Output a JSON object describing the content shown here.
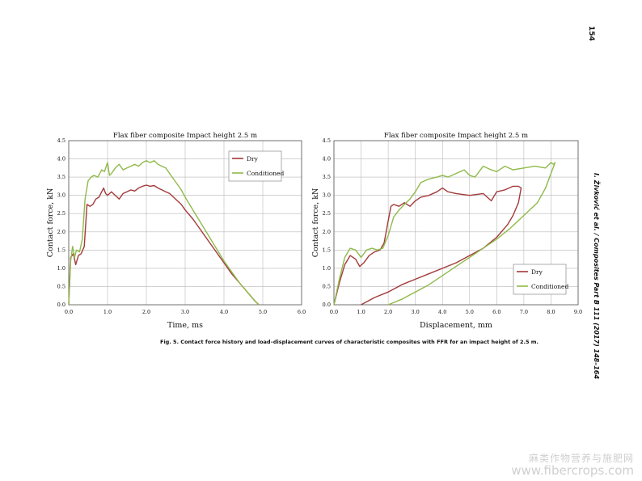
{
  "page": {
    "page_number": "154",
    "running_head": "I. Živković et al. / Composites Part B 111 (2017) 148–164",
    "caption": "Fig. 5. Contact force history and load–displacement curves of characteristic composites with FFR for an impact height of 2.5 m.",
    "watermark_line1": "麻类作物营养与施肥网",
    "watermark_line2": "www.fibercrops.com"
  },
  "colors": {
    "dry": "#a33a3a",
    "conditioned": "#8fba4a",
    "grid": "#b8b8b8",
    "frame": "#555555"
  },
  "chart_data": [
    {
      "type": "line",
      "title": "Flax fiber composite Impact height 2.5 m",
      "xlabel": "Time, ms",
      "ylabel": "Contact force, kN",
      "xlim": [
        0,
        6
      ],
      "ylim": [
        0,
        4.5
      ],
      "xticks": [
        "0.0",
        "1.0",
        "2.0",
        "3.0",
        "4.0",
        "5.0",
        "6.0"
      ],
      "yticks": [
        "0.0",
        "0.5",
        "1.0",
        "1.5",
        "2.0",
        "2.5",
        "3.0",
        "3.5",
        "4.0",
        "4.5"
      ],
      "grid": true,
      "legend_position": "top-right",
      "series": [
        {
          "name": "Dry",
          "color": "#a33a3a",
          "x": [
            0,
            0.05,
            0.12,
            0.18,
            0.25,
            0.32,
            0.4,
            0.47,
            0.55,
            0.62,
            0.7,
            0.78,
            0.85,
            0.9,
            0.95,
            1.0,
            1.1,
            1.2,
            1.3,
            1.4,
            1.5,
            1.6,
            1.7,
            1.8,
            1.9,
            2.0,
            2.1,
            2.2,
            2.3,
            2.4,
            2.5,
            2.6,
            2.7,
            2.8,
            2.9,
            3.0,
            3.2,
            3.4,
            3.6,
            3.8,
            4.0,
            4.2,
            4.4,
            4.6,
            4.8,
            4.9
          ],
          "y": [
            0,
            1.3,
            1.4,
            1.1,
            1.35,
            1.4,
            1.6,
            2.75,
            2.7,
            2.75,
            2.9,
            2.95,
            3.1,
            3.2,
            3.05,
            3.0,
            3.1,
            3.0,
            2.9,
            3.05,
            3.1,
            3.15,
            3.12,
            3.2,
            3.25,
            3.28,
            3.25,
            3.27,
            3.2,
            3.15,
            3.1,
            3.05,
            2.95,
            2.85,
            2.75,
            2.6,
            2.35,
            2.05,
            1.75,
            1.45,
            1.15,
            0.85,
            0.6,
            0.35,
            0.1,
            0
          ]
        },
        {
          "name": "Conditioned",
          "color": "#8fba4a",
          "x": [
            0,
            0.05,
            0.1,
            0.15,
            0.2,
            0.28,
            0.35,
            0.42,
            0.5,
            0.58,
            0.65,
            0.75,
            0.85,
            0.92,
            1.0,
            1.05,
            1.1,
            1.2,
            1.3,
            1.4,
            1.5,
            1.6,
            1.7,
            1.8,
            1.9,
            2.0,
            2.1,
            2.2,
            2.3,
            2.4,
            2.5,
            2.6,
            2.7,
            2.8,
            2.9,
            3.0,
            3.2,
            3.4,
            3.6,
            3.8,
            4.0,
            4.2,
            4.4,
            4.6,
            4.8,
            4.9
          ],
          "y": [
            0,
            1.2,
            1.6,
            1.3,
            1.5,
            1.45,
            1.8,
            2.9,
            3.4,
            3.5,
            3.55,
            3.5,
            3.7,
            3.65,
            3.9,
            3.55,
            3.6,
            3.75,
            3.85,
            3.7,
            3.75,
            3.8,
            3.85,
            3.8,
            3.9,
            3.95,
            3.9,
            3.95,
            3.85,
            3.8,
            3.75,
            3.6,
            3.45,
            3.3,
            3.15,
            2.95,
            2.6,
            2.25,
            1.9,
            1.55,
            1.2,
            0.9,
            0.6,
            0.35,
            0.1,
            0
          ]
        }
      ]
    },
    {
      "type": "line",
      "title": "Flax fiber composite Impact height 2.5 m",
      "xlabel": "Displacement, mm",
      "ylabel": "Contact force, kN",
      "xlim": [
        0,
        9
      ],
      "ylim": [
        0,
        4.5
      ],
      "xticks": [
        "0.0",
        "1.0",
        "2.0",
        "3.0",
        "4.0",
        "5.0",
        "6.0",
        "7.0",
        "8.0",
        "9.0"
      ],
      "yticks": [
        "0.0",
        "0.5",
        "1.0",
        "1.5",
        "2.0",
        "2.5",
        "3.0",
        "3.5",
        "4.0",
        "4.5"
      ],
      "grid": true,
      "legend_position": "bottom-right",
      "series": [
        {
          "name": "Dry",
          "color": "#a33a3a",
          "x": [
            0,
            0.2,
            0.4,
            0.6,
            0.8,
            0.95,
            1.1,
            1.3,
            1.5,
            1.7,
            1.85,
            2.0,
            2.1,
            2.2,
            2.4,
            2.6,
            2.8,
            3.0,
            3.2,
            3.5,
            3.8,
            4.0,
            4.2,
            4.5,
            5.0,
            5.5,
            5.8,
            6.0,
            6.3,
            6.6,
            6.8,
            6.9,
            6.8,
            6.6,
            6.4,
            6.0,
            5.5,
            5.0,
            4.5,
            4.0,
            3.5,
            3.0,
            2.5,
            2.0,
            1.5,
            1.0
          ],
          "y": [
            0,
            0.6,
            1.1,
            1.35,
            1.25,
            1.05,
            1.15,
            1.35,
            1.45,
            1.5,
            1.7,
            2.3,
            2.7,
            2.75,
            2.7,
            2.8,
            2.7,
            2.85,
            2.95,
            3.0,
            3.1,
            3.2,
            3.1,
            3.05,
            3.0,
            3.05,
            2.85,
            3.1,
            3.15,
            3.25,
            3.25,
            3.2,
            2.8,
            2.45,
            2.2,
            1.85,
            1.55,
            1.35,
            1.15,
            1.0,
            0.85,
            0.7,
            0.55,
            0.35,
            0.2,
            0
          ]
        },
        {
          "name": "Conditioned",
          "color": "#8fba4a",
          "x": [
            0,
            0.2,
            0.4,
            0.6,
            0.8,
            1.0,
            1.2,
            1.4,
            1.6,
            1.8,
            2.0,
            2.2,
            2.4,
            2.6,
            2.8,
            3.0,
            3.2,
            3.5,
            3.8,
            4.0,
            4.2,
            4.5,
            4.8,
            5.0,
            5.2,
            5.5,
            5.8,
            6.0,
            6.3,
            6.6,
            7.0,
            7.4,
            7.8,
            8.0,
            8.1,
            8.15,
            8.0,
            7.8,
            7.5,
            7.0,
            6.5,
            6.0,
            5.5,
            5.0,
            4.5,
            4.0,
            3.5,
            3.0,
            2.5,
            2.0
          ],
          "y": [
            0,
            0.7,
            1.3,
            1.55,
            1.5,
            1.3,
            1.5,
            1.55,
            1.5,
            1.55,
            1.9,
            2.4,
            2.6,
            2.75,
            2.9,
            3.1,
            3.35,
            3.45,
            3.5,
            3.55,
            3.5,
            3.6,
            3.7,
            3.55,
            3.5,
            3.8,
            3.7,
            3.65,
            3.8,
            3.7,
            3.75,
            3.8,
            3.75,
            3.9,
            3.85,
            3.9,
            3.6,
            3.2,
            2.8,
            2.45,
            2.1,
            1.8,
            1.55,
            1.3,
            1.05,
            0.8,
            0.55,
            0.35,
            0.15,
            0
          ]
        }
      ]
    }
  ]
}
